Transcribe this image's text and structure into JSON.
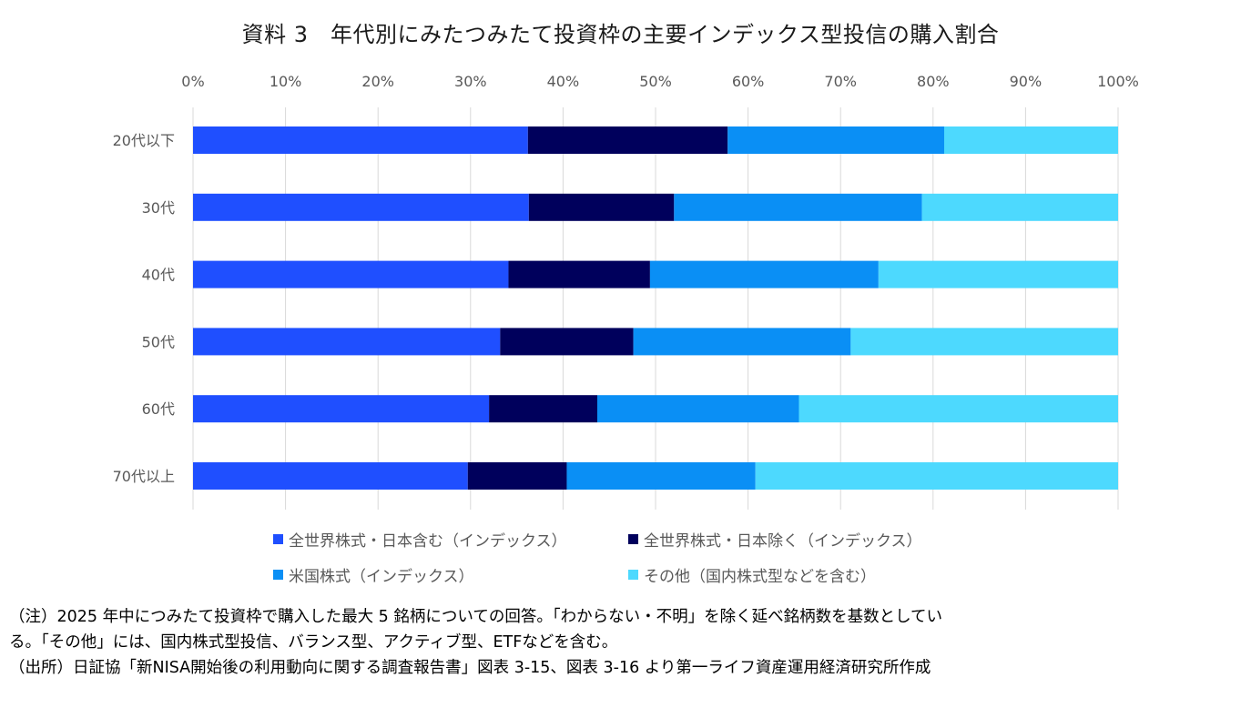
{
  "title": "資料 3　年代別にみたつみたて投資枠の主要インデックス型投信の購入割合",
  "chart_data": {
    "type": "bar",
    "orientation": "horizontal",
    "stacked": true,
    "categories": [
      "20代以下",
      "30代",
      "40代",
      "50代",
      "60代",
      "70代以上"
    ],
    "x_ticks": [
      "0%",
      "10%",
      "20%",
      "30%",
      "40%",
      "50%",
      "60%",
      "70%",
      "80%",
      "90%",
      "100%"
    ],
    "xlim": [
      0,
      100
    ],
    "x_axis_position": "top",
    "grid": true,
    "legend_position": "bottom",
    "series": [
      {
        "name": "全世界株式・日本含む（インデックス）",
        "color": "#1f4fff",
        "values": [
          36.2,
          36.3,
          34.1,
          33.2,
          32.0,
          29.7
        ]
      },
      {
        "name": "全世界株式・日本除く（インデックス）",
        "color": "#00005c",
        "values": [
          21.6,
          15.7,
          15.3,
          14.4,
          11.7,
          10.7
        ]
      },
      {
        "name": "米国株式（インデックス）",
        "color": "#0a8ff5",
        "values": [
          23.4,
          26.8,
          24.7,
          23.5,
          21.8,
          20.4
        ]
      },
      {
        "name": "その他（国内株式型などを含む）",
        "color": "#4dd9fe",
        "values": [
          18.8,
          21.2,
          25.9,
          28.9,
          34.5,
          39.2
        ]
      }
    ]
  },
  "notes": {
    "line1": "（注）2025 年中につみたて投資枠で購入した最大 5 銘柄についての回答。「わからない・不明」を除く延べ銘柄数を基数としてい",
    "line2": "る。「その他」には、国内株式型投信、バランス型、アクティブ型、ETFなどを含む。",
    "line3": "（出所）日証協「新NISA開始後の利用動向に関する調査報告書」図表 3-15、図表 3-16 より第一ライフ資産運用経済研究所作成"
  }
}
